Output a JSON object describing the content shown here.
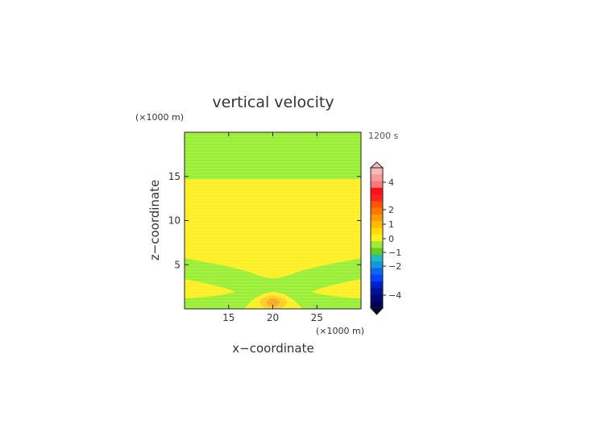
{
  "chart_data": {
    "type": "heatmap",
    "title": "vertical velocity",
    "xlabel": "x−coordinate",
    "ylabel": "z−coordinate",
    "x_unit": "(×1000 m)",
    "y_unit": "(×1000 m)",
    "time_label": "1200 s",
    "xlim": [
      10,
      30
    ],
    "ylim": [
      0,
      20
    ],
    "x_ticks": [
      15,
      20,
      25
    ],
    "y_ticks": [
      5,
      10,
      15
    ],
    "colorbar": {
      "tick_labels": [
        "4",
        "2",
        "1",
        "0",
        "−1",
        "−2",
        "−4"
      ],
      "tick_values": [
        4,
        2,
        1,
        0,
        -1,
        -2,
        -4
      ],
      "extend": "both"
    },
    "field_levels": [
      {
        "level": "0 to 0.5",
        "color": "#99ee33"
      },
      {
        "level": "0.5 to 1",
        "color": "#ffee22"
      },
      {
        "level": "1 to 1.5",
        "color": "#ffcc22"
      },
      {
        "level": "1.5 to 2",
        "color": "#f5aa22"
      }
    ]
  }
}
